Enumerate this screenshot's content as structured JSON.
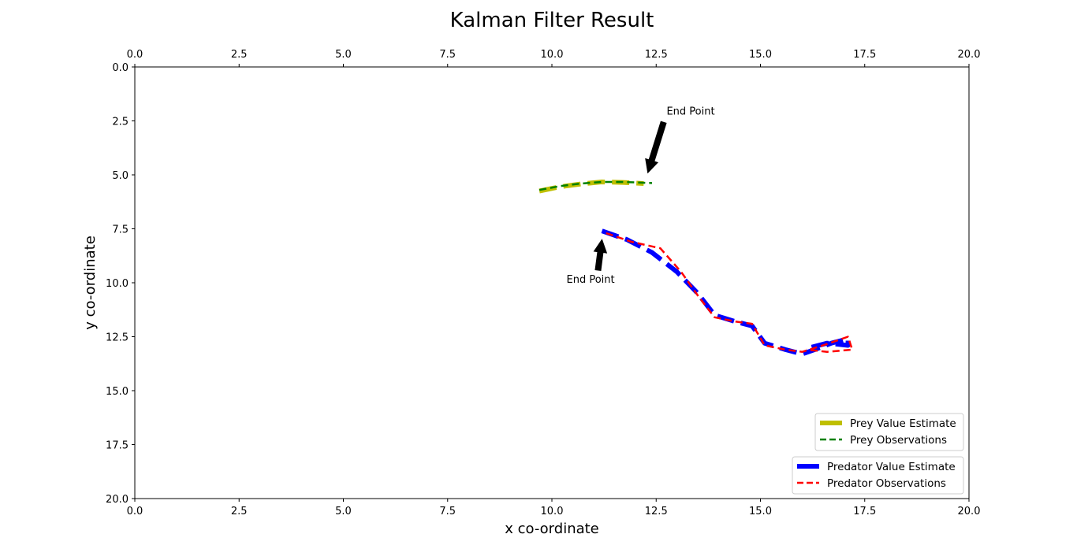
{
  "chart_data": {
    "type": "line",
    "title": "Kalman Filter Result",
    "xlabel": "x co-ordinate",
    "ylabel": "y co-ordinate",
    "xlim": [
      0,
      20
    ],
    "ylim": [
      20,
      0
    ],
    "y_inverted": true,
    "x_ticks_top_and_bottom": true,
    "xticks": [
      "0.0",
      "2.5",
      "5.0",
      "7.5",
      "10.0",
      "12.5",
      "15.0",
      "17.5",
      "20.0"
    ],
    "yticks": [
      "0.0",
      "2.5",
      "5.0",
      "7.5",
      "10.0",
      "12.5",
      "15.0",
      "17.5",
      "20.0"
    ],
    "grid": false,
    "series": [
      {
        "name": "Prey Value Estimate",
        "color": "#bfbf00",
        "style": "dashed-thick",
        "x": [
          9.7,
          10.2,
          10.7,
          11.2,
          11.7,
          12.0,
          12.2
        ],
        "y": [
          5.75,
          5.55,
          5.42,
          5.33,
          5.35,
          5.38,
          5.4
        ]
      },
      {
        "name": "Prey Observations",
        "color": "#008000",
        "style": "dashed",
        "x": [
          9.7,
          10.2,
          10.7,
          11.2,
          11.7,
          12.0,
          12.4
        ],
        "y": [
          5.7,
          5.52,
          5.4,
          5.33,
          5.33,
          5.35,
          5.38
        ]
      },
      {
        "name": "Predator Value Estimate",
        "color": "#0000ff",
        "style": "dashed-thick",
        "x": [
          11.2,
          11.8,
          12.4,
          13.0,
          13.5,
          13.9,
          14.4,
          14.8,
          15.1,
          15.6,
          16.0,
          16.3,
          16.7,
          17.1,
          17.1,
          16.6,
          16.2
        ],
        "y": [
          7.6,
          8.0,
          8.6,
          9.5,
          10.5,
          11.5,
          11.8,
          12.0,
          12.8,
          13.1,
          13.3,
          13.1,
          12.8,
          12.6,
          12.9,
          12.8,
          13.0
        ]
      },
      {
        "name": "Predator Observations",
        "color": "#ff0000",
        "style": "dashed",
        "x": [
          11.3,
          11.9,
          12.6,
          13.1,
          13.5,
          13.9,
          14.4,
          14.8,
          15.1,
          15.6,
          16.0,
          16.5,
          17.1,
          17.2,
          16.6,
          16.1
        ],
        "y": [
          7.7,
          8.1,
          8.4,
          9.5,
          10.6,
          11.6,
          11.8,
          11.9,
          12.9,
          13.1,
          13.2,
          12.9,
          12.5,
          13.1,
          13.2,
          13.1
        ]
      }
    ],
    "annotations": [
      {
        "text": "End Point",
        "xytext": [
          12.75,
          2.2
        ],
        "xy": [
          12.3,
          4.9
        ]
      },
      {
        "text": "End Point",
        "xytext": [
          10.35,
          10.0
        ],
        "xy": [
          11.2,
          8.0
        ]
      }
    ],
    "legends": [
      {
        "placement": "lower-right-upper",
        "entries": [
          "Prey Value Estimate",
          "Prey Observations"
        ]
      },
      {
        "placement": "lower-right",
        "entries": [
          "Predator Value Estimate",
          "Predator Observations"
        ]
      }
    ]
  }
}
